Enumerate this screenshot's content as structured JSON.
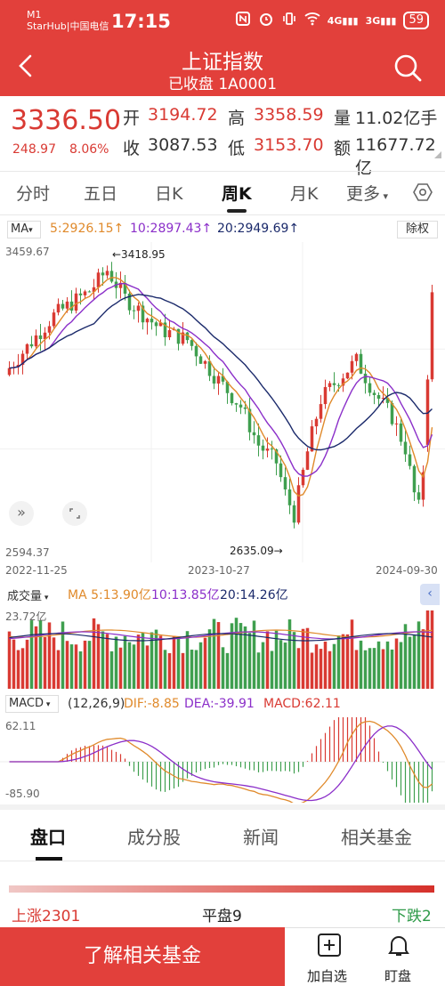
{
  "status_bar": {
    "carrier_line1": "M1",
    "carrier_line2": "StarHub|中国电信",
    "time": "17:15",
    "net1": "4G",
    "net2": "3G",
    "battery": "59"
  },
  "header": {
    "title": "上证指数",
    "subtitle": "已收盘 1A0001"
  },
  "quote": {
    "price": "3336.50",
    "change": "248.97",
    "change_pct": "8.06%",
    "open_label": "开",
    "open": "3194.72",
    "high_label": "高",
    "high": "3358.59",
    "volume_label": "量",
    "volume": "11.02亿手",
    "close_label": "收",
    "prev_close": "3087.53",
    "low_label": "低",
    "low": "3153.70",
    "amount_label": "额",
    "amount": "11677.72亿"
  },
  "tabs": [
    "分时",
    "五日",
    "日K",
    "周K",
    "月K",
    "更多"
  ],
  "active_tab": "周K",
  "ma_bar": {
    "indicator": "MA",
    "ma5": "5:2926.15↑",
    "ma10": "10:2897.43↑",
    "ma20": "20:2949.69↑",
    "adjust": "除权"
  },
  "kline": {
    "y_max_label": "3459.67",
    "y_min_label": "2594.37",
    "high_marker": "←3418.95",
    "low_marker": "2635.09→",
    "date_start": "2022-11-25",
    "date_mid": "2023-10-27",
    "date_end": "2024-09-30"
  },
  "volume_bar": {
    "indicator": "成交量",
    "ma5": "MA 5:13.90亿",
    "ma10": "10:13.85亿",
    "ma20": "20:14.26亿",
    "max_label": "23.72亿"
  },
  "macd_bar": {
    "indicator": "MACD",
    "params": "(12,26,9)",
    "dif": "DIF:-8.85",
    "dea": "DEA:-39.91",
    "macd": "MACD:62.11",
    "max_label": "62.11",
    "min_label": "-85.90"
  },
  "bottom_tabs": [
    "盘口",
    "成分股",
    "新闻",
    "相关基金"
  ],
  "breadth": {
    "up": "上涨2301",
    "flat": "平盘9",
    "down": "下跌2"
  },
  "footer": {
    "fund_button": "了解相关基金",
    "add_watch": "加自选",
    "watch": "盯盘"
  },
  "colors": {
    "accent": "#e2403b",
    "up": "#d93a33",
    "down": "#3f9f4f",
    "ma5": "#e08a2b",
    "ma10": "#8b2fc9",
    "ma20": "#1b2a6b"
  }
}
